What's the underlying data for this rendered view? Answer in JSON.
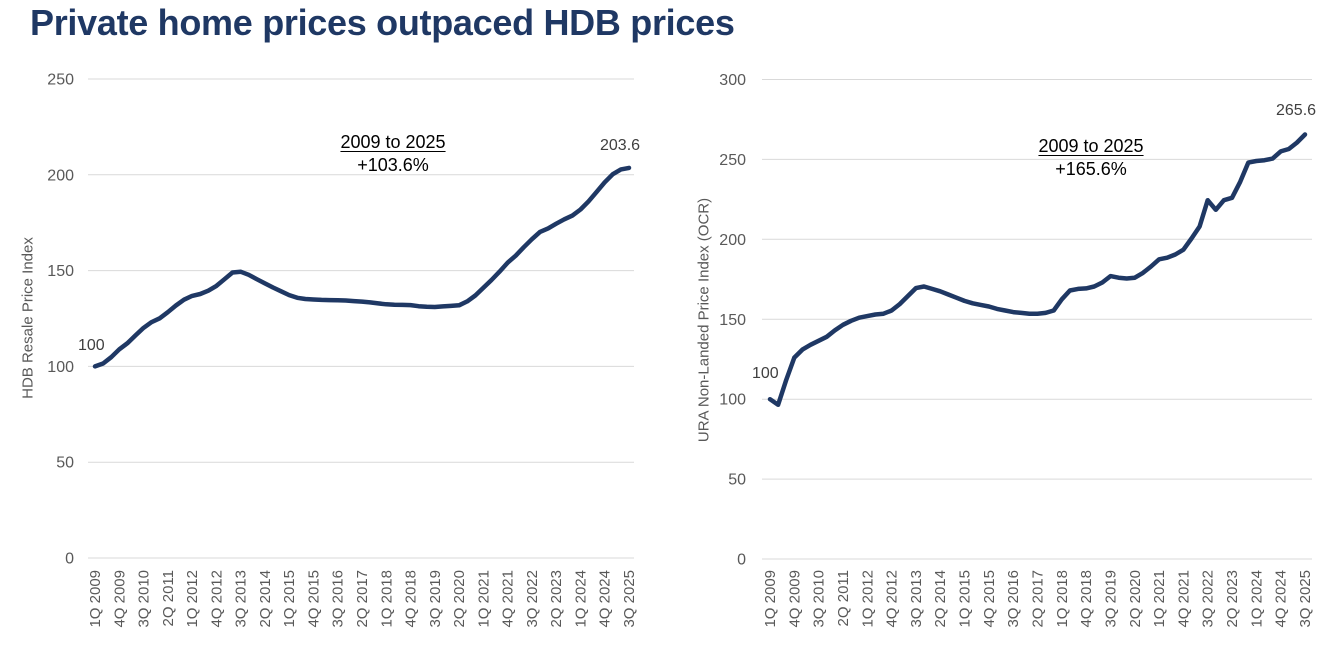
{
  "page_title": "Private home prices outpaced HDB prices",
  "colors": {
    "title": "#1F3864",
    "line": "#1F3864",
    "gridline": "#D9D9D9",
    "axis_label": "#595959",
    "value_label": "#404040",
    "annotation": "#000000",
    "background": "#FFFFFF"
  },
  "chart_data": [
    {
      "type": "line",
      "name": "hdb",
      "title": "",
      "xlabel": "",
      "ylabel": "HDB Resale Price Index",
      "ylim": [
        0,
        250
      ],
      "y_ticks": [
        0,
        50,
        100,
        150,
        200,
        250
      ],
      "grid": true,
      "legend": false,
      "x_tick_every": 3,
      "line_color": "#1F3864",
      "annotation": {
        "title": "2009 to 2025",
        "change": "+103.6%"
      },
      "point_labels": {
        "start": "100",
        "end": "203.6"
      },
      "categories": [
        "1Q 2009",
        "2Q 2009",
        "3Q 2009",
        "4Q 2009",
        "1Q 2010",
        "2Q 2010",
        "3Q 2010",
        "4Q 2010",
        "1Q 2011",
        "2Q 2011",
        "3Q 2011",
        "4Q 2011",
        "1Q 2012",
        "2Q 2012",
        "3Q 2012",
        "4Q 2012",
        "1Q 2013",
        "2Q 2013",
        "3Q 2013",
        "4Q 2013",
        "1Q 2014",
        "2Q 2014",
        "3Q 2014",
        "4Q 2014",
        "1Q 2015",
        "2Q 2015",
        "3Q 2015",
        "4Q 2015",
        "1Q 2016",
        "2Q 2016",
        "3Q 2016",
        "4Q 2016",
        "1Q 2017",
        "2Q 2017",
        "3Q 2017",
        "4Q 2017",
        "1Q 2018",
        "2Q 2018",
        "3Q 2018",
        "4Q 2018",
        "1Q 2019",
        "2Q 2019",
        "3Q 2019",
        "4Q 2019",
        "1Q 2020",
        "2Q 2020",
        "3Q 2020",
        "4Q 2020",
        "1Q 2021",
        "2Q 2021",
        "3Q 2021",
        "4Q 2021",
        "1Q 2022",
        "2Q 2022",
        "3Q 2022",
        "4Q 2022",
        "1Q 2023",
        "2Q 2023",
        "3Q 2023",
        "4Q 2023",
        "1Q 2024",
        "2Q 2024",
        "3Q 2024",
        "4Q 2024",
        "1Q 2025",
        "2Q 2025",
        "3Q 2025"
      ],
      "values": [
        100,
        101.5,
        104.8,
        108.9,
        112.1,
        116.2,
        120.1,
        123.1,
        125.1,
        128.3,
        131.8,
        134.8,
        136.8,
        137.8,
        139.5,
        142,
        145.5,
        149,
        149.4,
        147.8,
        145.5,
        143.3,
        141.2,
        139.2,
        137.2,
        135.8,
        135.2,
        134.9,
        134.7,
        134.6,
        134.5,
        134.4,
        134.1,
        133.8,
        133.4,
        132.9,
        132.4,
        132.2,
        132.1,
        132,
        131.4,
        131.1,
        131,
        131.3,
        131.6,
        131.9,
        133.9,
        137,
        141,
        145.1,
        149.4,
        154.1,
        157.8,
        162.2,
        166.4,
        170.2,
        172,
        174.5,
        176.8,
        178.7,
        181.9,
        186.1,
        191.1,
        196.1,
        200.3,
        202.8,
        203.6
      ]
    },
    {
      "type": "line",
      "name": "ura",
      "title": "",
      "xlabel": "",
      "ylabel": "URA Non-Landed Price Index (OCR)",
      "ylim": [
        0,
        300
      ],
      "y_ticks": [
        0,
        50,
        100,
        150,
        200,
        250,
        300
      ],
      "grid": true,
      "legend": false,
      "x_tick_every": 3,
      "line_color": "#1F3864",
      "annotation": {
        "title": "2009 to 2025",
        "change": "+165.6%"
      },
      "point_labels": {
        "start": "100",
        "end": "265.6"
      },
      "categories": [
        "1Q 2009",
        "2Q 2009",
        "3Q 2009",
        "4Q 2009",
        "1Q 2010",
        "2Q 2010",
        "3Q 2010",
        "4Q 2010",
        "1Q 2011",
        "2Q 2011",
        "3Q 2011",
        "4Q 2011",
        "1Q 2012",
        "2Q 2012",
        "3Q 2012",
        "4Q 2012",
        "1Q 2013",
        "2Q 2013",
        "3Q 2013",
        "4Q 2013",
        "1Q 2014",
        "2Q 2014",
        "3Q 2014",
        "4Q 2014",
        "1Q 2015",
        "2Q 2015",
        "3Q 2015",
        "4Q 2015",
        "1Q 2016",
        "2Q 2016",
        "3Q 2016",
        "4Q 2016",
        "1Q 2017",
        "2Q 2017",
        "3Q 2017",
        "4Q 2017",
        "1Q 2018",
        "2Q 2018",
        "3Q 2018",
        "4Q 2018",
        "1Q 2019",
        "2Q 2019",
        "3Q 2019",
        "4Q 2019",
        "1Q 2020",
        "2Q 2020",
        "3Q 2020",
        "4Q 2020",
        "1Q 2021",
        "2Q 2021",
        "3Q 2021",
        "4Q 2021",
        "1Q 2022",
        "2Q 2022",
        "3Q 2022",
        "4Q 2022",
        "1Q 2023",
        "2Q 2023",
        "3Q 2023",
        "4Q 2023",
        "1Q 2024",
        "2Q 2024",
        "3Q 2024",
        "4Q 2024",
        "1Q 2025",
        "2Q 2025",
        "3Q 2025"
      ],
      "values": [
        100,
        96.5,
        112,
        126,
        131,
        134,
        136.5,
        139,
        143,
        146.5,
        149,
        151,
        152,
        153,
        153.5,
        155.5,
        159.5,
        164.5,
        169.5,
        170.5,
        169,
        167.5,
        165.5,
        163.5,
        161.5,
        160,
        159,
        158,
        156.5,
        155.5,
        154.5,
        154,
        153.5,
        153.5,
        154,
        155.5,
        162.5,
        168,
        169,
        169.3,
        170.5,
        173,
        177,
        176,
        175.5,
        176,
        179,
        183,
        187.5,
        188.5,
        190.5,
        193.5,
        200.5,
        208,
        224.5,
        218.5,
        224.5,
        226,
        236,
        248,
        249,
        249.5,
        250.5,
        255,
        256.5,
        260.5,
        265.6
      ]
    }
  ]
}
